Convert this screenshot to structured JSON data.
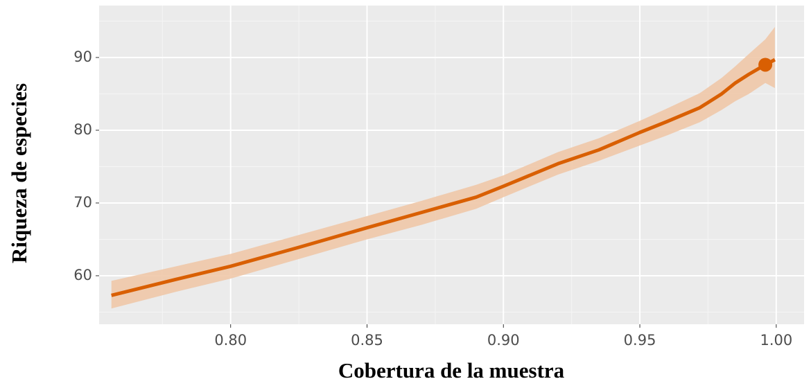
{
  "chart_data": {
    "type": "line",
    "xlabel": "Cobertura de la muestra",
    "ylabel": "Riqueza de especies",
    "x": [
      0.7563,
      0.78,
      0.8,
      0.825,
      0.85,
      0.87,
      0.89,
      0.9,
      0.92,
      0.935,
      0.95,
      0.96,
      0.972,
      0.98,
      0.985,
      0.99,
      0.996,
      0.9995
    ],
    "series": [
      {
        "color": "#d95f02",
        "ribbon_color": "#f0c8a8",
        "values": [
          57.3,
          59.5,
          61.3,
          63.9,
          66.6,
          68.7,
          70.8,
          72.3,
          75.4,
          77.3,
          79.7,
          81.2,
          83.1,
          85.0,
          86.5,
          87.7,
          89.0,
          89.7
        ],
        "lower": [
          55.5,
          57.8,
          59.6,
          62.3,
          65.0,
          67.0,
          69.2,
          70.8,
          73.9,
          75.8,
          77.9,
          79.3,
          81.1,
          82.8,
          84.0,
          85.0,
          86.5,
          85.8
        ],
        "upper": [
          59.3,
          61.3,
          63.0,
          65.6,
          68.2,
          70.3,
          72.5,
          73.8,
          77.0,
          78.9,
          81.3,
          83.0,
          85.1,
          87.2,
          88.8,
          90.5,
          92.5,
          94.2
        ]
      }
    ],
    "point": {
      "x": 0.996,
      "y": 89.0
    },
    "xlim": [
      0.7518,
      1.0102
    ],
    "ylim": [
      53.33,
      97.14
    ],
    "xticks": [
      {
        "value": 0.8,
        "label": "0.80"
      },
      {
        "value": 0.85,
        "label": "0.85"
      },
      {
        "value": 0.9,
        "label": "0.90"
      },
      {
        "value": 0.95,
        "label": "0.95"
      },
      {
        "value": 1.0,
        "label": "1.00"
      }
    ],
    "yticks": [
      60,
      70,
      80,
      90
    ],
    "xminor": [
      0.775,
      0.825,
      0.875,
      0.925,
      0.975
    ],
    "yminor": [
      55,
      65,
      75,
      85,
      95
    ],
    "grid": true
  }
}
